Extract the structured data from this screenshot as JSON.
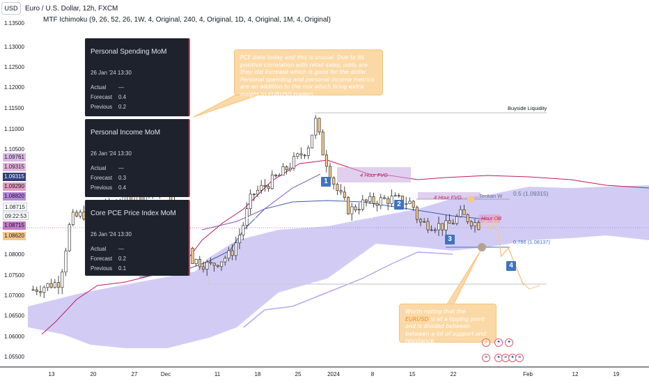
{
  "header": {
    "currency_button": "USD",
    "title": "Euro / U.S. Dollar, 12h, FXCM",
    "indicator": "MTF Ichimoku (9, 26, 52, 26, 1W, 4, Original, 240, 4, Original, 1D, 4, Original, 1M, 4, Original)"
  },
  "price_axis": [
    "1.13500",
    "1.13000",
    "1.12500",
    "1.12000",
    "1.11500",
    "1.11000",
    "1.10500",
    "1.08000",
    "1.07500",
    "1.07000",
    "1.06500",
    "1.06000",
    "1.05500"
  ],
  "price_labels": [
    {
      "text": "1.09761",
      "bg": "#dcb7e6",
      "fg": "#131722"
    },
    {
      "text": "1.09315",
      "bg": "#e6b3d9",
      "fg": "#131722"
    },
    {
      "text": "1.09315",
      "bg": "#2c3e7a",
      "fg": "#ffffff"
    },
    {
      "text": "1.09290",
      "bg": "#e59ac3",
      "fg": "#131722"
    },
    {
      "text": "1.08820",
      "bg": "#b586d9",
      "fg": "#131722"
    },
    {
      "text": "1.08715",
      "bg": "#ffffff",
      "fg": "#131722"
    },
    {
      "text": "09:22:53",
      "bg": "#ffffff",
      "fg": "#131722"
    },
    {
      "text": "1.08715",
      "bg": "#c57aca",
      "fg": "#131722"
    },
    {
      "text": "1.08620",
      "bg": "#f5c88a",
      "fg": "#131722"
    }
  ],
  "time_axis": [
    "13",
    "20",
    "27",
    "Dec",
    "11",
    "18",
    "25",
    "2024",
    "8",
    "15",
    "22",
    "Feb",
    "12",
    "19"
  ],
  "events": [
    {
      "title": "Personal Spending MoM",
      "date": "26 Jan '24 13:30",
      "rows": [
        [
          "Actual",
          "—"
        ],
        [
          "Forecast",
          "0.4"
        ],
        [
          "Previous",
          "0.2"
        ]
      ]
    },
    {
      "title": "Personal Income MoM",
      "date": "26 Jan '24 13:30",
      "rows": [
        [
          "Actual",
          "—"
        ],
        [
          "Forecast",
          "0.3"
        ],
        [
          "Previous",
          "0.4"
        ]
      ]
    },
    {
      "title": "Core PCE Price Index MoM",
      "date": "26 Jan '24 13:30",
      "rows": [
        [
          "Actual",
          "—"
        ],
        [
          "Forecast",
          "0.2"
        ],
        [
          "Previous",
          "0.1"
        ]
      ]
    }
  ],
  "notes": {
    "top": "PCE data today and this is crucial. Due to its positive correlation with retail sales, odds are they did increase which is good for the dollar. Personal spending and personal income metrics are an addition to the mix which bring extra insight to EURUSD traders.",
    "bottom_a": "Worth noting that the ",
    "bottom_b": "EURUSD",
    "bottom_c": " is at a tipping point and is divided between between a lot of support and resistance."
  },
  "annotations": {
    "buyside": "Buyside Liquidity",
    "fvg1": "4 Hour FVG",
    "fvg2": "4 Hour FVG",
    "tenkan": "Tenkan W",
    "fib05": "0.5 (1.09315)",
    "fib786": "0.786 (1.08137)",
    "hour_ob": "Hour OB"
  },
  "markers": [
    "1",
    "2",
    "3",
    "4"
  ],
  "colors": {
    "bull": "#ffffff",
    "bear": "#f5c88a",
    "candle_outline": "#1a1a1a",
    "cloud": "#9b8fe8",
    "kijun": "#c2185b",
    "tenkan": "#3f5aa8",
    "marker": "#3f73c2",
    "note_bg": "#fbd9a6"
  },
  "chart_data": {
    "type": "candlestick",
    "ylim": [
      1.0525,
      1.1375
    ],
    "x_categories": [
      "13",
      "20",
      "27",
      "Dec",
      "11",
      "18",
      "25",
      "2024",
      "8",
      "15",
      "22",
      "Feb",
      "12",
      "19"
    ],
    "candles": [
      [
        1.07,
        1.073,
        1.069,
        1.0735
      ],
      [
        1.073,
        1.076,
        1.071,
        1.077
      ],
      [
        1.076,
        1.079,
        1.074,
        1.08
      ],
      [
        1.079,
        1.088,
        1.078,
        1.09
      ],
      [
        1.088,
        1.086,
        1.084,
        1.09
      ],
      [
        1.086,
        1.095,
        1.085,
        1.0965
      ],
      [
        1.095,
        1.092,
        1.09,
        1.097
      ],
      [
        1.092,
        1.094,
        1.091,
        1.096
      ],
      [
        1.094,
        1.089,
        1.088,
        1.095
      ],
      [
        1.089,
        1.082,
        1.08,
        1.09
      ],
      [
        1.082,
        1.078,
        1.076,
        1.083
      ],
      [
        1.078,
        1.076,
        1.075,
        1.08
      ],
      [
        1.076,
        1.078,
        1.074,
        1.08
      ],
      [
        1.078,
        1.081,
        1.076,
        1.082
      ],
      [
        1.081,
        1.088,
        1.08,
        1.089
      ],
      [
        1.088,
        1.094,
        1.087,
        1.096
      ],
      [
        1.094,
        1.097,
        1.092,
        1.099
      ],
      [
        1.097,
        1.1,
        1.095,
        1.102
      ],
      [
        1.1,
        1.104,
        1.098,
        1.105
      ],
      [
        1.104,
        1.113,
        1.103,
        1.114
      ],
      [
        1.113,
        1.106,
        1.104,
        1.114
      ],
      [
        1.106,
        1.098,
        1.096,
        1.107
      ],
      [
        1.098,
        1.094,
        1.092,
        1.099
      ],
      [
        1.094,
        1.095,
        1.091,
        1.097
      ],
      [
        1.095,
        1.093,
        1.092,
        1.096
      ],
      [
        1.093,
        1.096,
        1.091,
        1.097
      ],
      [
        1.096,
        1.095,
        1.093,
        1.098
      ],
      [
        1.095,
        1.088,
        1.086,
        1.096
      ],
      [
        1.088,
        1.087,
        1.085,
        1.09
      ],
      [
        1.087,
        1.089,
        1.085,
        1.091
      ],
      [
        1.089,
        1.086,
        1.084,
        1.09
      ],
      [
        1.086,
        1.085,
        1.082,
        1.088
      ],
      [
        1.085,
        1.0872,
        1.083,
        1.088
      ]
    ],
    "projection": [
      1.0872,
      1.088,
      1.0815,
      1.083,
      1.0755
    ],
    "levels": {
      "buyside_liquidity": 1.114,
      "fib_05": 1.09315,
      "fib_0786": 1.08137,
      "support": 1.073,
      "last_price": 1.08715
    }
  }
}
